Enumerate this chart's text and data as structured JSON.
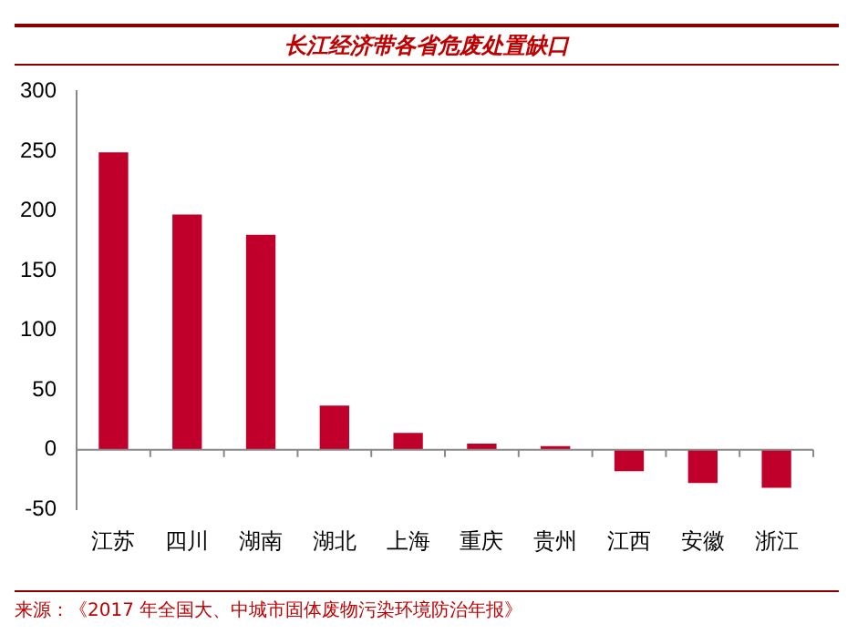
{
  "chart_data": {
    "type": "bar",
    "title": "长江经济带各省危废处置缺口",
    "categories": [
      "江苏",
      "四川",
      "湖南",
      "湖北",
      "上海",
      "重庆",
      "贵州",
      "江西",
      "安徽",
      "浙江"
    ],
    "values": [
      249,
      197,
      180,
      37,
      14,
      5,
      3,
      -18,
      -28,
      -32
    ],
    "color": "#c0002a",
    "ylim": [
      -50,
      300
    ],
    "yticks": [
      -50,
      0,
      50,
      100,
      150,
      200,
      250,
      300
    ],
    "legend": false,
    "annotations": [
      "来源：《2017 年全国大、中城市固体废物污染环境防治年报》"
    ]
  }
}
